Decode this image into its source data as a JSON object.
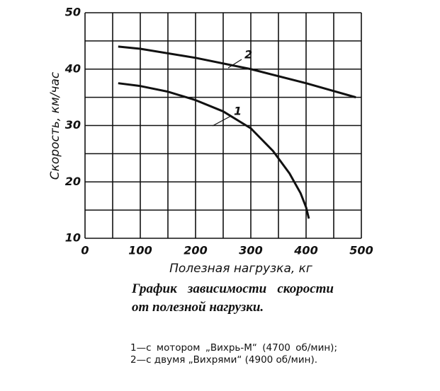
{
  "chart_data": {
    "type": "line",
    "ylabel": "Скорость, км/час",
    "xlabel": "Полезная нагрузка, кг",
    "caption": "График зависимости скорости от полезной нагрузки.",
    "note": "1—с мотором „Вихрь-М“ (4700 об/мин); 2—с двумя „Вихрями“ (4900 об/мин).",
    "xlim": [
      0,
      500
    ],
    "ylim": [
      10,
      50
    ],
    "xticks": [
      0,
      100,
      200,
      300,
      400,
      500
    ],
    "yticks": [
      10,
      20,
      30,
      40,
      50
    ],
    "xgrid": [
      0,
      50,
      100,
      150,
      200,
      250,
      300,
      350,
      400,
      450,
      500
    ],
    "ygrid": [
      10,
      15,
      20,
      25,
      30,
      35,
      40,
      45,
      50
    ],
    "grid": true,
    "series": [
      {
        "name": "1",
        "color": "#111111",
        "x": [
          60,
          100,
          150,
          200,
          250,
          300,
          340,
          370,
          390,
          400,
          405
        ],
        "values": [
          37.5,
          37,
          36,
          34.5,
          32.5,
          29.5,
          25.5,
          21.5,
          18,
          15.5,
          13.5
        ]
      },
      {
        "name": "2",
        "color": "#111111",
        "x": [
          60,
          100,
          200,
          300,
          400,
          490
        ],
        "values": [
          44,
          43.6,
          42,
          40,
          37.5,
          35
        ]
      }
    ]
  }
}
